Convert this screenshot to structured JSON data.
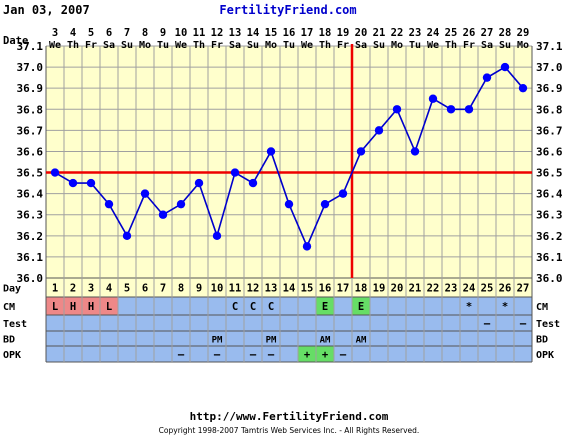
{
  "header": {
    "date": "Jan 03, 2007",
    "site": "FertilityFriend.com"
  },
  "footer": {
    "url": "http://www.FertilityFriend.com",
    "copyright": "Copyright 1998-2007 Tamtris Web Services Inc. - All Rights Reserved."
  },
  "colors": {
    "plot_bg": "#ffffcc",
    "grid": "#a0a0a0",
    "line": "#0000cc",
    "point": "#0000ff",
    "coverline": "#ee0000",
    "ovulation_line": "#ee0000",
    "row_bg": "#99bbee",
    "day_row_bg": "#ffffcc",
    "cm_flag": "#ee8888",
    "egg_white": "#66dd66",
    "opk_positive": "#66dd66",
    "site_title": "#0000cc"
  },
  "chart_data": {
    "type": "line",
    "row_labels": {
      "date": "Date",
      "day": "Day",
      "cm": "CM",
      "test": "Test",
      "bd": "BD",
      "opk": "OPK"
    },
    "dates": [
      "3",
      "4",
      "5",
      "6",
      "7",
      "8",
      "9",
      "10",
      "11",
      "12",
      "13",
      "14",
      "15",
      "16",
      "17",
      "18",
      "19",
      "20",
      "21",
      "22",
      "23",
      "24",
      "25",
      "26",
      "27",
      "28",
      "29"
    ],
    "weekdays": [
      "We",
      "Th",
      "Fr",
      "Sa",
      "Su",
      "Mo",
      "Tu",
      "We",
      "Th",
      "Fr",
      "Sa",
      "Su",
      "Mo",
      "Tu",
      "We",
      "Th",
      "Fr",
      "Sa",
      "Su",
      "Mo",
      "Tu",
      "We",
      "Th",
      "Fr",
      "Sa",
      "Su",
      "Mo"
    ],
    "days": [
      "1",
      "2",
      "3",
      "4",
      "5",
      "6",
      "7",
      "8",
      "9",
      "10",
      "11",
      "12",
      "13",
      "14",
      "15",
      "16",
      "17",
      "18",
      "19",
      "20",
      "21",
      "22",
      "23",
      "24",
      "25",
      "26",
      "27"
    ],
    "temperatures": [
      36.5,
      36.45,
      36.45,
      36.35,
      36.2,
      36.4,
      36.3,
      36.35,
      36.45,
      36.2,
      36.5,
      36.45,
      36.6,
      36.35,
      36.15,
      36.35,
      36.4,
      36.6,
      36.7,
      36.8,
      36.6,
      36.85,
      36.8,
      36.8,
      36.95,
      37.0,
      36.9
    ],
    "y_ticks": [
      "36.0",
      "36.1",
      "36.2",
      "36.3",
      "36.4",
      "36.5",
      "36.6",
      "36.7",
      "36.8",
      "36.9",
      "37.0",
      "37.1"
    ],
    "ylim": [
      36.0,
      37.1
    ],
    "coverline": 36.5,
    "ovulation_day": 17,
    "grid": true,
    "cm": [
      "L",
      "H",
      "H",
      "L",
      "",
      "",
      "",
      "",
      "",
      "",
      "C",
      "C",
      "C",
      "",
      "",
      "E",
      "",
      "E",
      "",
      "",
      "",
      "",
      "",
      "*",
      "",
      "*",
      ""
    ],
    "test": [
      "",
      "",
      "",
      "",
      "",
      "",
      "",
      "",
      "",
      "",
      "",
      "",
      "",
      "",
      "",
      "",
      "",
      "",
      "",
      "",
      "",
      "",
      "",
      "",
      "–",
      "",
      "–"
    ],
    "bd": [
      "",
      "",
      "",
      "",
      "",
      "",
      "",
      "",
      "",
      "PM",
      "",
      "",
      "PM",
      "",
      "",
      "AM",
      "",
      "AM",
      "",
      "",
      "",
      "",
      "",
      "",
      "",
      "",
      ""
    ],
    "opk": [
      "",
      "",
      "",
      "",
      "",
      "",
      "",
      "–",
      "",
      "–",
      "",
      "–",
      "–",
      "",
      "+",
      "+",
      "–",
      "",
      "",
      "",
      "",
      "",
      "",
      "",
      "",
      "",
      ""
    ]
  }
}
